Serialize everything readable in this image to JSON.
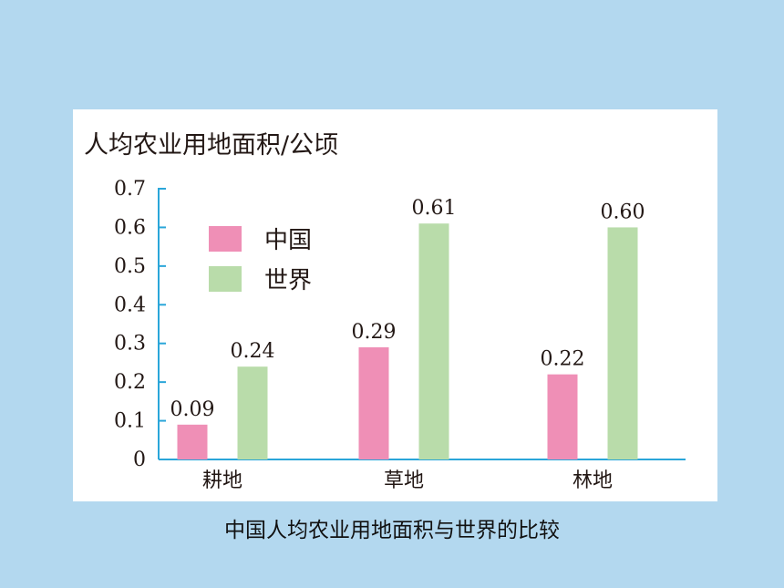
{
  "caption": "中国人均农业用地面积与世界的比较",
  "chart_data": {
    "type": "bar",
    "title": "人均农业用地面积/公顷",
    "categories": [
      "耕地",
      "草地",
      "林地"
    ],
    "series": [
      {
        "name": "中国",
        "values": [
          0.09,
          0.29,
          0.22
        ],
        "color": "#ef8fb6"
      },
      {
        "name": "世界",
        "values": [
          0.24,
          0.61,
          0.6
        ],
        "color": "#b9dcaa"
      }
    ],
    "data_labels": [
      [
        "0.09",
        "0.29",
        "0.22"
      ],
      [
        "0.24",
        "0.61",
        "0.60"
      ]
    ],
    "ylim": [
      0,
      0.7
    ],
    "yticks": [
      "0",
      "0.1",
      "0.2",
      "0.3",
      "0.4",
      "0.5",
      "0.6",
      "0.7"
    ],
    "grid": false,
    "legend": "top-left",
    "axis_color": "#2aa6d9"
  }
}
